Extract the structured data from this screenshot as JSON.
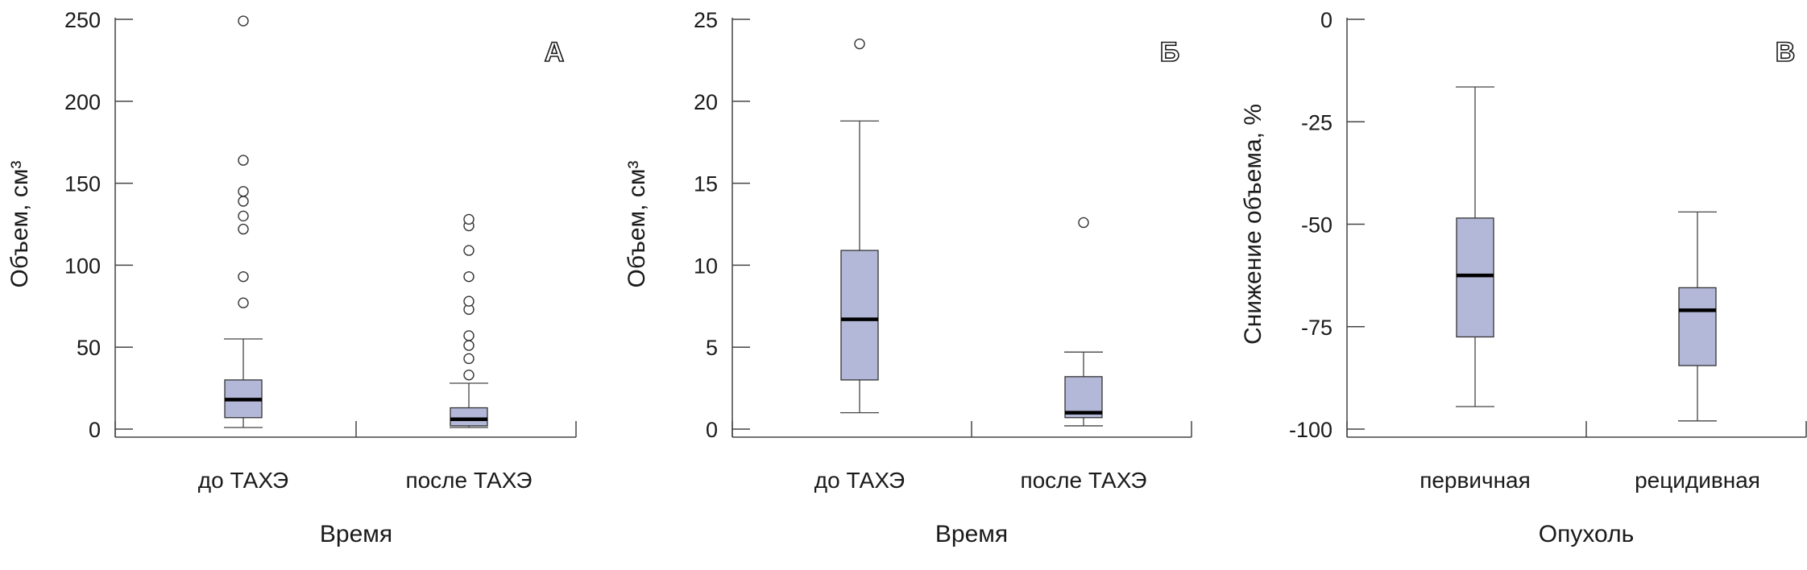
{
  "chart_data": [
    {
      "type": "box",
      "panel_label": "А",
      "xlabel": "Время",
      "ylabel": "Объем, см³",
      "ylim": [
        0,
        250
      ],
      "yticks": [
        "0",
        "50",
        "100",
        "150",
        "200",
        "250"
      ],
      "categories": [
        "до ТАХЭ",
        "после ТАХЭ"
      ],
      "boxes": [
        {
          "category": "до ТАХЭ",
          "whisker_low": 1,
          "q1": 7,
          "median": 18,
          "q3": 30,
          "whisker_high": 55,
          "outliers": [
            77,
            93,
            122,
            130,
            139,
            145,
            164,
            249
          ]
        },
        {
          "category": "после ТАХЭ",
          "whisker_low": 1,
          "q1": 2,
          "median": 6,
          "q3": 13,
          "whisker_high": 28,
          "outliers": [
            33,
            43,
            51,
            57,
            73,
            78,
            93,
            109,
            124,
            128
          ]
        }
      ]
    },
    {
      "type": "box",
      "panel_label": "Б",
      "xlabel": "Время",
      "ylabel": "Объем, см³",
      "ylim": [
        0,
        25
      ],
      "yticks": [
        "0",
        "5",
        "10",
        "15",
        "20",
        "25"
      ],
      "categories": [
        "до ТАХЭ",
        "после ТАХЭ"
      ],
      "boxes": [
        {
          "category": "до ТАХЭ",
          "whisker_low": 1,
          "q1": 3,
          "median": 6.7,
          "q3": 10.9,
          "whisker_high": 18.8,
          "outliers": [
            23.5
          ]
        },
        {
          "category": "после ТАХЭ",
          "whisker_low": 0.2,
          "q1": 0.7,
          "median": 1.0,
          "q3": 3.2,
          "whisker_high": 4.7,
          "outliers": [
            12.6
          ]
        }
      ]
    },
    {
      "type": "box",
      "panel_label": "В",
      "xlabel": "Опухоль",
      "ylabel": "Снижение объема, %",
      "ylim": [
        -100,
        0
      ],
      "yticks": [
        "-100",
        "-75",
        "-50",
        "-25",
        "0"
      ],
      "categories": [
        "первичная",
        "рецидивная"
      ],
      "boxes": [
        {
          "category": "первичная",
          "whisker_low": -94.5,
          "q1": -77.5,
          "median": -62.5,
          "q3": -48.5,
          "whisker_high": -16.5,
          "outliers": []
        },
        {
          "category": "рецидивная",
          "whisker_low": -98,
          "q1": -84.5,
          "median": -71,
          "q3": -65.5,
          "whisker_high": -47,
          "outliers": []
        }
      ]
    }
  ]
}
